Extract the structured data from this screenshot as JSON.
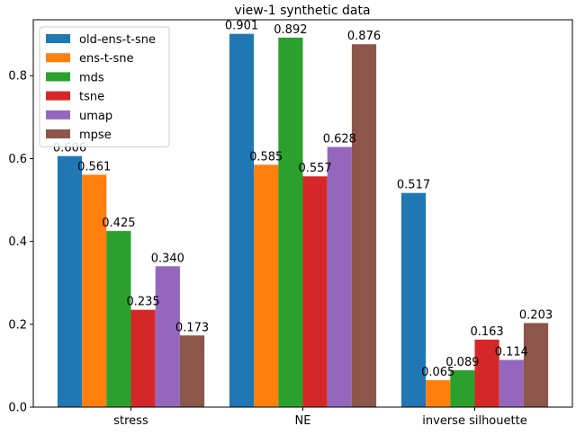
{
  "chart_data": {
    "type": "bar",
    "title": "view-1 synthetic data",
    "xlabel": "",
    "ylabel": "",
    "categories": [
      "stress",
      "NE",
      "inverse silhouette"
    ],
    "ylim": [
      0,
      0.935
    ],
    "yticks": [
      "0.0",
      "0.2",
      "0.4",
      "0.6",
      "0.8"
    ],
    "grid": false,
    "legend_position": "top-left",
    "series": [
      {
        "name": "old-ens-t-sne",
        "color": "#1f77b4",
        "values": [
          0.606,
          0.901,
          0.517
        ],
        "labels": [
          "0.606",
          "0.901",
          "0.517"
        ]
      },
      {
        "name": "ens-t-sne",
        "color": "#ff7f0e",
        "values": [
          0.561,
          0.585,
          0.065
        ],
        "labels": [
          "0.561",
          "0.585",
          "0.065"
        ]
      },
      {
        "name": "mds",
        "color": "#2ca02c",
        "values": [
          0.425,
          0.892,
          0.089
        ],
        "labels": [
          "0.425",
          "0.892",
          "0.089"
        ]
      },
      {
        "name": "tsne",
        "color": "#d62728",
        "values": [
          0.235,
          0.557,
          0.163
        ],
        "labels": [
          "0.235",
          "0.557",
          "0.163"
        ]
      },
      {
        "name": "umap",
        "color": "#9467bd",
        "values": [
          0.34,
          0.628,
          0.114
        ],
        "labels": [
          "0.340",
          "0.628",
          "0.114"
        ]
      },
      {
        "name": "mpse",
        "color": "#8c564b",
        "values": [
          0.173,
          0.876,
          0.203
        ],
        "labels": [
          "0.173",
          "0.876",
          "0.203"
        ]
      }
    ]
  }
}
